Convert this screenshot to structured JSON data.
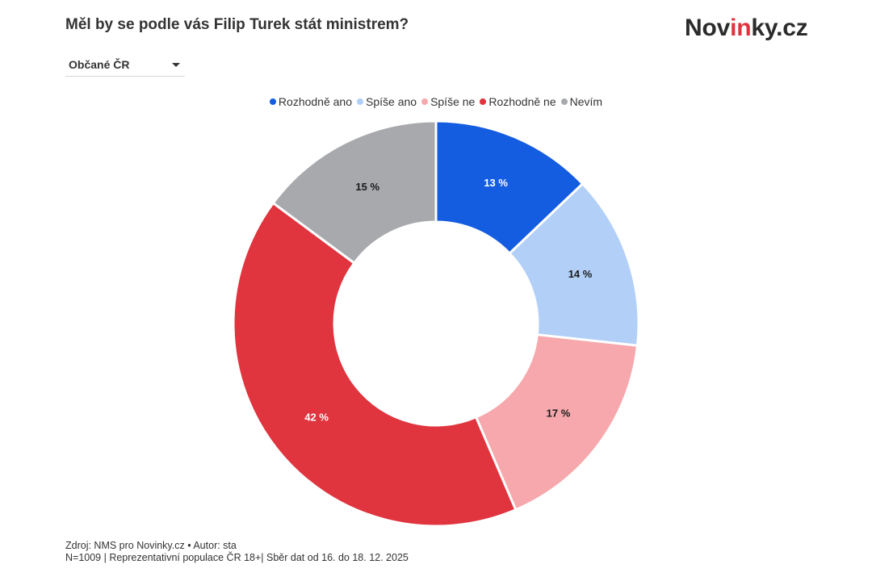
{
  "header": {
    "title": "Měl by se podle vás Filip Turek stát ministrem?",
    "logo": {
      "prefix": "Nov",
      "accent": "in",
      "suffix": "ky.cz",
      "accent_color": "#e0333d"
    }
  },
  "filter": {
    "selected": "Občané ČR"
  },
  "chart_data": {
    "type": "pie",
    "donut": true,
    "legend_position": "top",
    "series": [
      {
        "name": "Rozhodně ano",
        "value": 13,
        "label": "13 %",
        "color": "#145ce0",
        "label_color": "#ffffff"
      },
      {
        "name": "Spíše ano",
        "value": 14,
        "label": "14 %",
        "color": "#b1cff7",
        "label_color": "#1a1a1a"
      },
      {
        "name": "Spíše ne",
        "value": 17,
        "label": "17 %",
        "color": "#f6a8ac",
        "label_color": "#1a1a1a"
      },
      {
        "name": "Rozhodně ne",
        "value": 42,
        "label": "42 %",
        "color": "#e0343e",
        "label_color": "#ffffff"
      },
      {
        "name": "Nevím",
        "value": 15,
        "label": "15 %",
        "color": "#a8a9ad",
        "label_color": "#1a1a1a"
      }
    ]
  },
  "footer": {
    "line1": "Zdroj: NMS pro Novinky.cz • Autor: sta",
    "line2": "N=1009 | Reprezentativní populace ČR 18+| Sběr dat od 16. do 18. 12. 2025"
  }
}
